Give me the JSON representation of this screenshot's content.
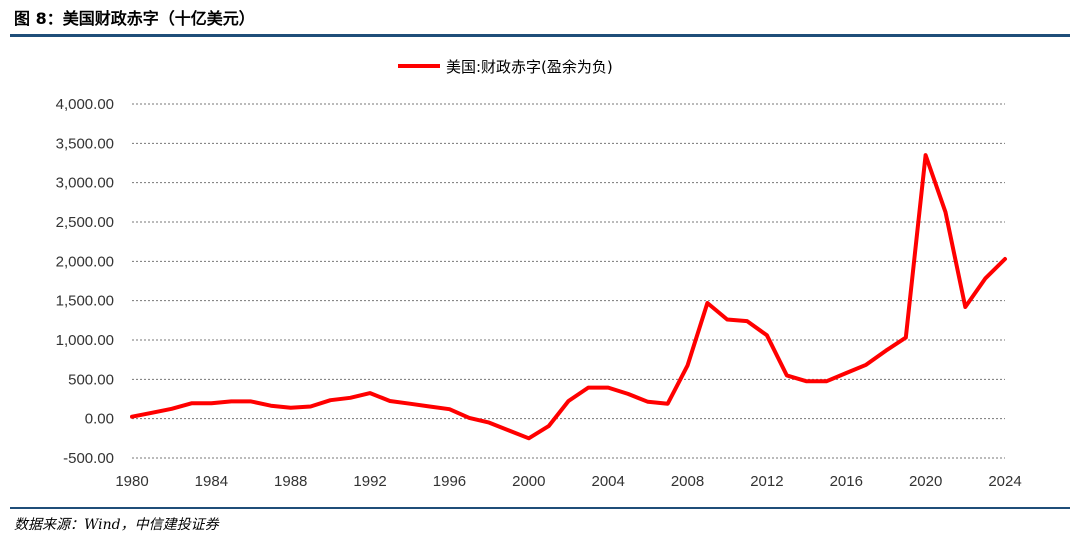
{
  "figure": {
    "title": "图 8：美国财政赤字（十亿美元）",
    "source": "数据来源：Wind，中信建投证券"
  },
  "colors": {
    "series": "#ff0000",
    "rule": "#1f4e79",
    "grid": "#777777"
  },
  "chart_data": {
    "type": "line",
    "title": "",
    "xlabel": "",
    "ylabel": "",
    "legend_position": "top-center",
    "grid": true,
    "ylim": [
      -500,
      4000
    ],
    "xlim": [
      1980,
      2024
    ],
    "y_ticks": [
      -500,
      0,
      500,
      1000,
      1500,
      2000,
      2500,
      3000,
      3500,
      4000
    ],
    "y_tick_labels": [
      "-500.00",
      "0.00",
      "500.00",
      "1,000.00",
      "1,500.00",
      "2,000.00",
      "2,500.00",
      "3,000.00",
      "3,500.00",
      "4,000.00"
    ],
    "x_tick_labels": [
      "1980",
      "1984",
      "1988",
      "1992",
      "1996",
      "2000",
      "2004",
      "2008",
      "2012",
      "2016",
      "2020",
      "2024"
    ],
    "series": [
      {
        "name": "美国:财政赤字(盈余为负)",
        "x": [
          1980,
          1981,
          1982,
          1983,
          1984,
          1985,
          1986,
          1987,
          1988,
          1989,
          1990,
          1991,
          1992,
          1993,
          1994,
          1995,
          1996,
          1997,
          1998,
          1999,
          2000,
          2001,
          2002,
          2003,
          2004,
          2005,
          2006,
          2007,
          2008,
          2009,
          2010,
          2011,
          2012,
          2013,
          2014,
          2015,
          2016,
          2017,
          2018,
          2019,
          2020,
          2021,
          2022,
          2023,
          2024
        ],
        "values": [
          25,
          75,
          125,
          195,
          195,
          220,
          220,
          165,
          140,
          155,
          235,
          265,
          325,
          225,
          190,
          155,
          120,
          10,
          -50,
          -150,
          -250,
          -95,
          225,
          395,
          395,
          315,
          215,
          190,
          675,
          1470,
          1260,
          1240,
          1060,
          550,
          475,
          475,
          580,
          685,
          865,
          1030,
          3350,
          2625,
          1420,
          1780,
          2030
        ]
      }
    ]
  }
}
